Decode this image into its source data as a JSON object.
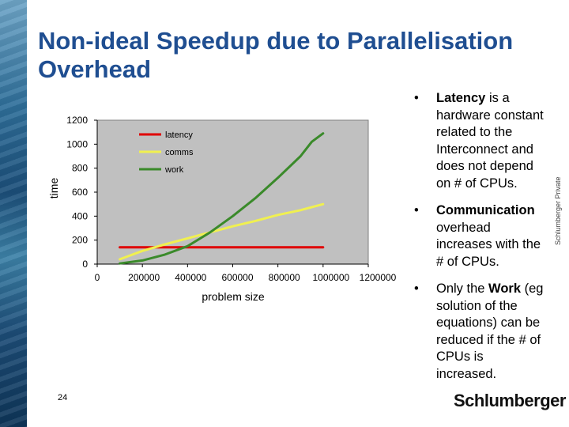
{
  "slide": {
    "title": "Non-ideal Speedup due to Parallelisation Overhead",
    "page_number": "24",
    "side_label": "Schlumberger Private",
    "logo_text": "Schlumberger"
  },
  "bullets": [
    {
      "bold": "Latency",
      "text": " is a hardware constant  related to the Interconnect and does not depend on # of CPUs."
    },
    {
      "bold": "Communication",
      "text": " overhead increases with the # of CPUs."
    },
    {
      "pre": "Only the ",
      "bold": "Work",
      "text": " (eg solution of the equations) can be reduced if the # of CPUs is increased."
    }
  ],
  "chart_data": {
    "type": "line",
    "title": "",
    "xlabel": "problem size",
    "ylabel": "time",
    "xlim": [
      0,
      1200000
    ],
    "ylim": [
      0,
      1200
    ],
    "x_ticks": [
      "0",
      "200000",
      "400000",
      "600000",
      "800000",
      "1000000",
      "1200000"
    ],
    "y_ticks": [
      "0",
      "200",
      "400",
      "600",
      "800",
      "1000",
      "1200"
    ],
    "x_tick_values": [
      0,
      200000,
      400000,
      600000,
      800000,
      1000000,
      1200000
    ],
    "y_tick_values": [
      0,
      200,
      400,
      600,
      800,
      1000,
      1200
    ],
    "legend_position": "top-center",
    "grid": false,
    "series": [
      {
        "name": "latency",
        "color": "#e00000",
        "x": [
          100000,
          1000000
        ],
        "y": [
          140,
          140
        ]
      },
      {
        "name": "comms",
        "color": "#f0f050",
        "x": [
          100000,
          200000,
          300000,
          400000,
          500000,
          600000,
          700000,
          800000,
          900000,
          1000000
        ],
        "y": [
          40,
          110,
          165,
          215,
          265,
          315,
          360,
          410,
          450,
          500
        ]
      },
      {
        "name": "work",
        "color": "#3a8a2a",
        "x": [
          100000,
          200000,
          300000,
          400000,
          500000,
          600000,
          700000,
          800000,
          900000,
          950000,
          1000000
        ],
        "y": [
          5,
          30,
          80,
          150,
          265,
          400,
          550,
          720,
          900,
          1020,
          1090
        ]
      }
    ]
  }
}
